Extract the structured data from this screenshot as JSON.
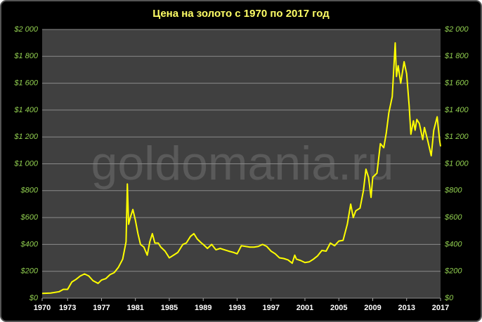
{
  "chart_data": {
    "type": "line",
    "title": "Цена на золото с 1970 по 2017 год",
    "watermark": "goldomania.ru",
    "x": [
      1970,
      1971,
      1972,
      1972.5,
      1973,
      1973.5,
      1974,
      1974.5,
      1975,
      1975.5,
      1976,
      1976.6,
      1977,
      1977.5,
      1978,
      1978.5,
      1979,
      1979.5,
      1979.9,
      1980.05,
      1980.2,
      1980.4,
      1980.7,
      1981,
      1981.3,
      1981.6,
      1982,
      1982.4,
      1982.7,
      1983,
      1983.3,
      1983.7,
      1984,
      1984.5,
      1985,
      1985.5,
      1986,
      1986.6,
      1987,
      1987.5,
      1987.9,
      1988.3,
      1988.8,
      1989,
      1989.5,
      1990,
      1990.5,
      1991,
      1991.5,
      1992,
      1992.6,
      1993,
      1993.5,
      1994,
      1994.5,
      1995,
      1995.5,
      1996,
      1996.5,
      1997,
      1997.5,
      1998,
      1998.5,
      1999,
      1999.5,
      1999.8,
      2000,
      2000.5,
      2001,
      2001.5,
      2002,
      2002.5,
      2003,
      2003.5,
      2004,
      2004.5,
      2005,
      2005.5,
      2006,
      2006.4,
      2006.7,
      2007,
      2007.5,
      2007.9,
      2008.2,
      2008.5,
      2008.8,
      2009,
      2009.5,
      2009.9,
      2010.3,
      2010.6,
      2010.9,
      2011.3,
      2011.65,
      2011.8,
      2012,
      2012.3,
      2012.7,
      2013,
      2013.3,
      2013.5,
      2013.8,
      2014,
      2014.2,
      2014.5,
      2014.9,
      2015.1,
      2015.5,
      2015.9,
      2016.2,
      2016.6,
      2016.9,
      2017
    ],
    "values": [
      35,
      38,
      48,
      65,
      65,
      120,
      140,
      165,
      180,
      165,
      130,
      110,
      135,
      145,
      175,
      190,
      230,
      290,
      420,
      850,
      550,
      600,
      660,
      580,
      480,
      400,
      380,
      320,
      420,
      480,
      410,
      410,
      380,
      350,
      300,
      320,
      340,
      400,
      410,
      460,
      480,
      440,
      410,
      400,
      370,
      400,
      360,
      370,
      360,
      350,
      340,
      330,
      390,
      385,
      380,
      380,
      385,
      400,
      385,
      350,
      330,
      300,
      295,
      285,
      260,
      320,
      290,
      280,
      265,
      270,
      290,
      315,
      355,
      350,
      410,
      390,
      425,
      430,
      550,
      700,
      600,
      650,
      670,
      800,
      960,
      900,
      750,
      900,
      930,
      1150,
      1120,
      1230,
      1380,
      1500,
      1900,
      1650,
      1730,
      1600,
      1760,
      1670,
      1430,
      1220,
      1320,
      1250,
      1330,
      1300,
      1180,
      1270,
      1170,
      1060,
      1250,
      1350,
      1170,
      1130
    ],
    "color": "#ffff00",
    "xlim": [
      1970,
      2017
    ],
    "xticks": [
      1970,
      1973,
      1977,
      1981,
      1985,
      1989,
      1993,
      1997,
      2001,
      2005,
      2009,
      2013,
      2017
    ],
    "ylim": [
      0,
      2000
    ],
    "yticks": [
      {
        "value": 0,
        "label": "$0"
      },
      {
        "value": 200,
        "label": "$200"
      },
      {
        "value": 400,
        "label": "$400"
      },
      {
        "value": 600,
        "label": "$600"
      },
      {
        "value": 800,
        "label": "$800"
      },
      {
        "value": 1000,
        "label": "$1 000"
      },
      {
        "value": 1200,
        "label": "$1 200"
      },
      {
        "value": 1400,
        "label": "$1 400"
      },
      {
        "value": 1600,
        "label": "$1 600"
      },
      {
        "value": 1800,
        "label": "$1 800"
      },
      {
        "value": 2000,
        "label": "$2 000"
      }
    ],
    "grid": true
  }
}
